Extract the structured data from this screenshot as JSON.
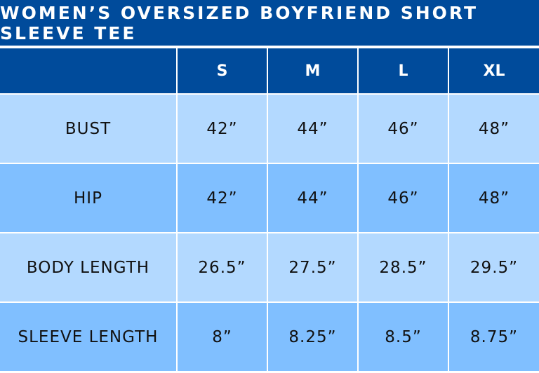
{
  "title": "WOMEN’S OVERSIZED BOYFRIEND SHORT SLEEVE TEE",
  "colors": {
    "header": "#004b9b",
    "row_light": "#b3d9ff",
    "row_dark": "#80bfff"
  },
  "headers": [
    "",
    "S",
    "M",
    "L",
    "XL"
  ],
  "rows": [
    {
      "label": "BUST",
      "values": [
        "42”",
        "44”",
        "46”",
        "48”"
      ]
    },
    {
      "label": "HIP",
      "values": [
        "42”",
        "44”",
        "46”",
        "48”"
      ]
    },
    {
      "label": "BODY LENGTH",
      "values": [
        "26.5”",
        "27.5”",
        "28.5”",
        "29.5”"
      ]
    },
    {
      "label": "SLEEVE LENGTH",
      "values": [
        "8”",
        "8.25”",
        "8.5”",
        "8.75”"
      ]
    }
  ]
}
